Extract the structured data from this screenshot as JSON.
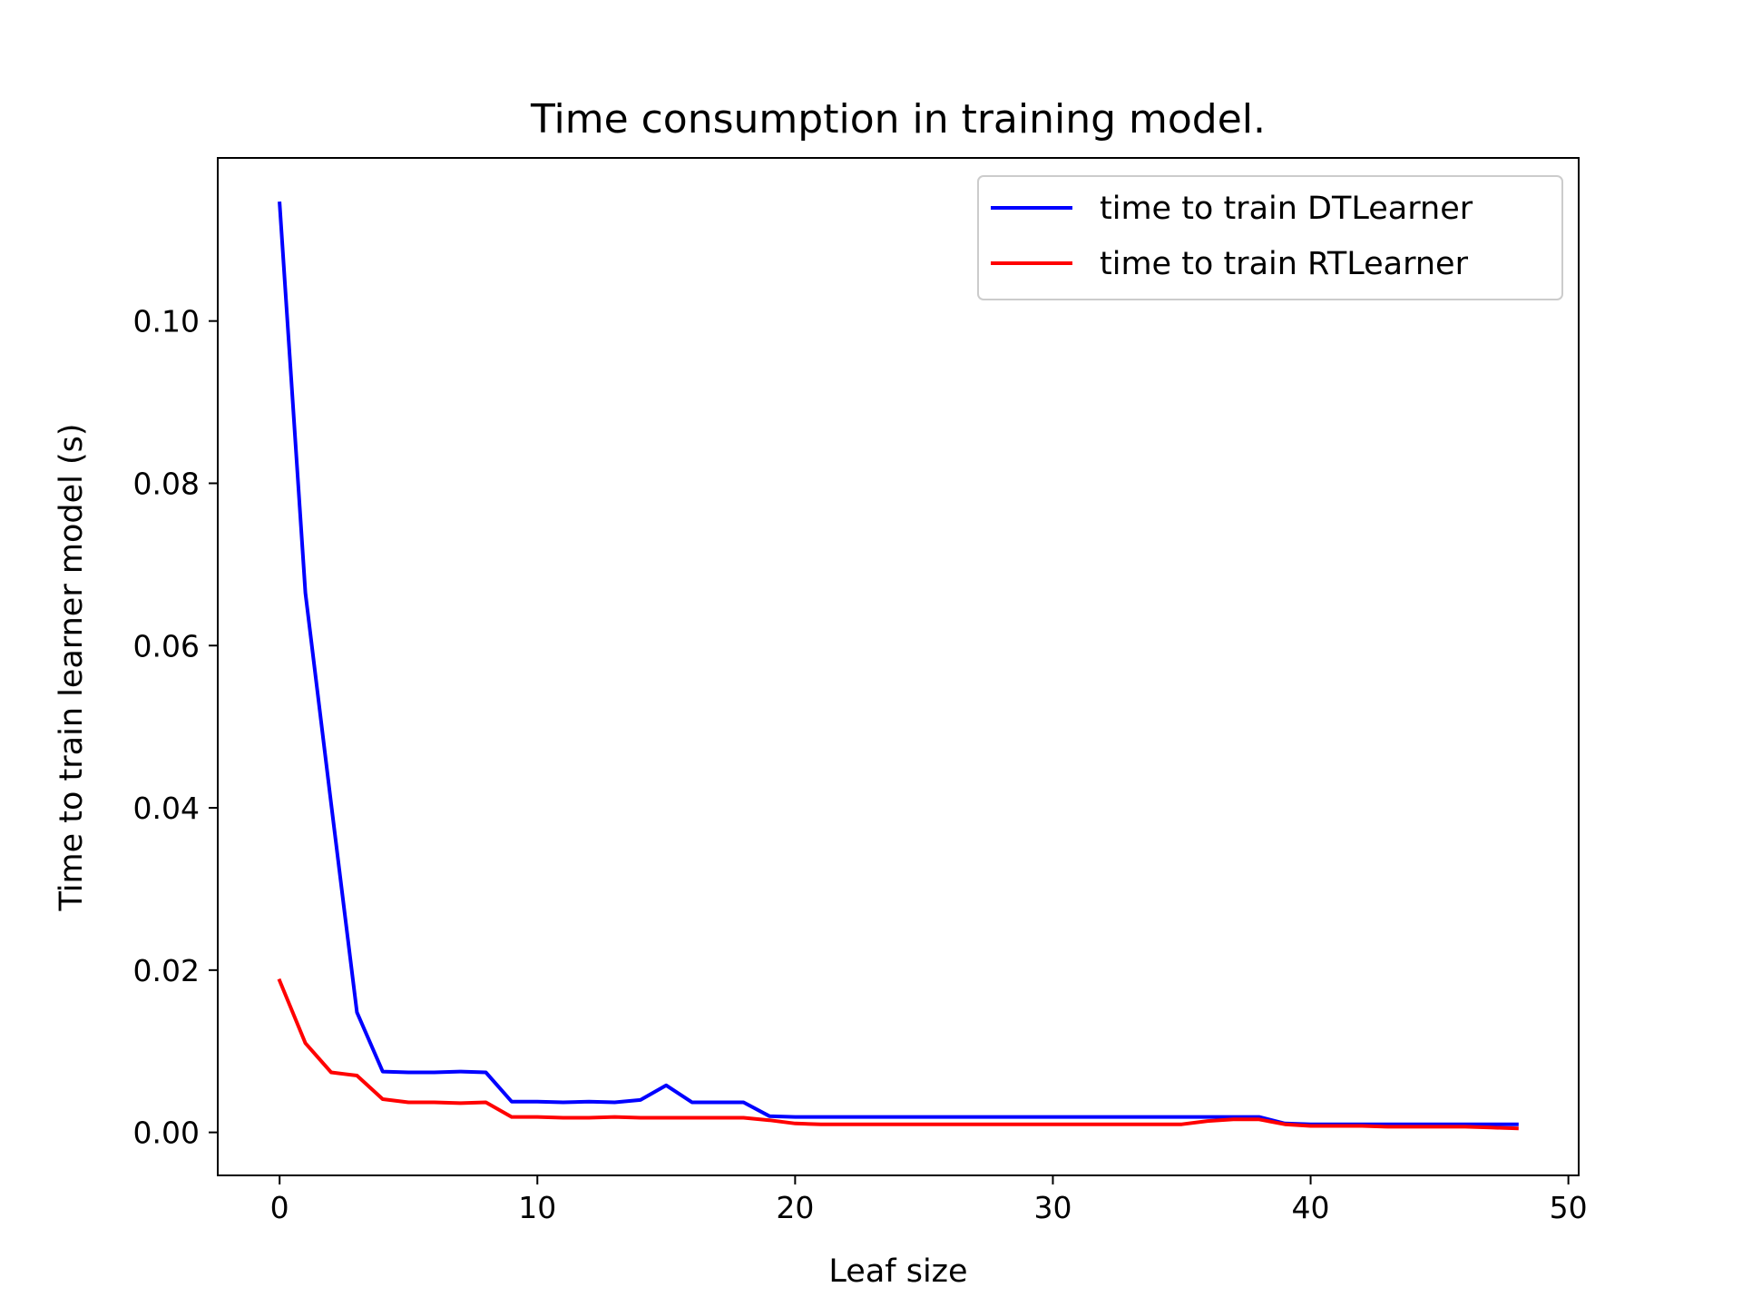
{
  "chart_data": {
    "type": "line",
    "title": "Time consumption in training model.",
    "xlabel": "Leaf size",
    "ylabel": "Time to train learner model (s)",
    "xlim": [
      -2.4,
      50.4
    ],
    "ylim": [
      -0.0053,
      0.1201
    ],
    "xticks": [
      0,
      10,
      20,
      30,
      40,
      50
    ],
    "xtick_labels": [
      "0",
      "10",
      "20",
      "30",
      "40",
      "50"
    ],
    "yticks": [
      0.0,
      0.02,
      0.04,
      0.06,
      0.08,
      0.1
    ],
    "ytick_labels": [
      "0.00",
      "0.02",
      "0.04",
      "0.06",
      "0.08",
      "0.10"
    ],
    "grid": false,
    "legend_position": "top-right",
    "x": [
      0,
      1,
      2,
      3,
      4,
      5,
      6,
      7,
      8,
      9,
      10,
      11,
      12,
      13,
      14,
      15,
      16,
      17,
      18,
      19,
      20,
      21,
      22,
      23,
      24,
      25,
      26,
      27,
      28,
      29,
      30,
      31,
      32,
      33,
      34,
      35,
      36,
      37,
      38,
      39,
      40,
      41,
      42,
      43,
      44,
      45,
      46,
      47,
      48
    ],
    "series": [
      {
        "name": "time to train DTLearner",
        "color": "#0000ff",
        "values": [
          0.1145,
          0.0665,
          0.0405,
          0.0148,
          0.0075,
          0.0074,
          0.0074,
          0.0075,
          0.0074,
          0.0038,
          0.0038,
          0.0037,
          0.0038,
          0.0037,
          0.004,
          0.0058,
          0.0037,
          0.0037,
          0.0037,
          0.002,
          0.0019,
          0.0019,
          0.0019,
          0.0019,
          0.0019,
          0.0019,
          0.0019,
          0.0019,
          0.0019,
          0.0019,
          0.0019,
          0.0019,
          0.0019,
          0.0019,
          0.0019,
          0.0019,
          0.0019,
          0.0019,
          0.0019,
          0.0011,
          0.001,
          0.001,
          0.001,
          0.001,
          0.001,
          0.001,
          0.001,
          0.001,
          0.001
        ]
      },
      {
        "name": "time to train RTLearner",
        "color": "#ff0000",
        "values": [
          0.0187,
          0.011,
          0.0074,
          0.007,
          0.0041,
          0.0037,
          0.0037,
          0.0036,
          0.0037,
          0.0019,
          0.0019,
          0.0018,
          0.0018,
          0.0019,
          0.0018,
          0.0018,
          0.0018,
          0.0018,
          0.0018,
          0.0015,
          0.0011,
          0.001,
          0.001,
          0.001,
          0.001,
          0.001,
          0.001,
          0.001,
          0.001,
          0.001,
          0.001,
          0.001,
          0.001,
          0.001,
          0.001,
          0.001,
          0.0014,
          0.0016,
          0.0016,
          0.001,
          0.0008,
          0.0008,
          0.0008,
          0.0007,
          0.0007,
          0.0007,
          0.0007,
          0.0006,
          0.0005
        ]
      }
    ]
  }
}
